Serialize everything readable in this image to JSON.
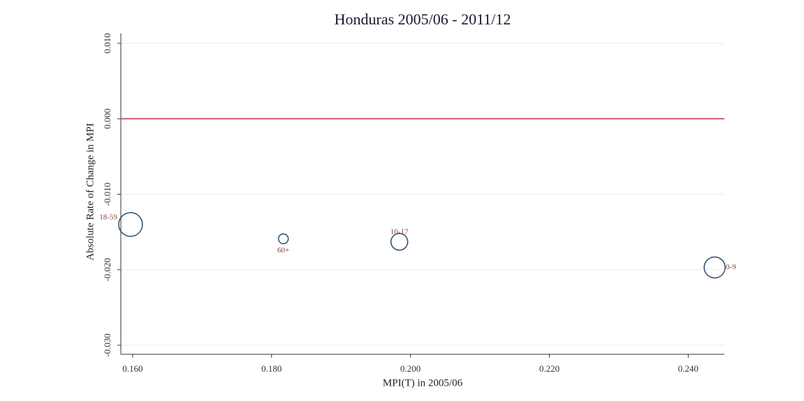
{
  "chart_data": {
    "type": "scatter",
    "title": "Honduras 2005/06 - 2011/12",
    "x_label": "MPI(T) in 2005/06",
    "y_label": "Absolute Rate of Change in MPI",
    "series": [
      {
        "name": null,
        "color": "#2b4a6f",
        "point_labels": [
          "18-59",
          "60+",
          "10-17",
          "0-9"
        ],
        "label_positions": [
          "left",
          "below",
          "above",
          "right"
        ],
        "x": [
          0.1597,
          0.1817,
          0.1984,
          0.2438
        ],
        "values": [
          -0.014,
          -0.0159,
          -0.0163,
          -0.0197
        ],
        "sizes": [
          289,
          49,
          144,
          225
        ]
      }
    ],
    "reference_line": {
      "value": 0,
      "color": "#d2546b"
    },
    "xlim": [
      0.1583,
      0.2452
    ],
    "xticks": [
      {
        "value": 0.16,
        "label": "0.160"
      },
      {
        "value": 0.18,
        "label": "0.180"
      },
      {
        "value": 0.2,
        "label": "0.200"
      },
      {
        "value": 0.22,
        "label": "0.220"
      },
      {
        "value": 0.24,
        "label": "0.240"
      }
    ],
    "ylim": [
      -0.0312,
      0.0113
    ],
    "yticks": [
      {
        "value": -0.03,
        "label": "-0.030"
      },
      {
        "value": -0.02,
        "label": "-0.020"
      },
      {
        "value": -0.01,
        "label": "-0.010"
      },
      {
        "value": 0,
        "label": "0.000"
      },
      {
        "value": 0.01,
        "label": "0.010"
      }
    ],
    "grid": true
  }
}
